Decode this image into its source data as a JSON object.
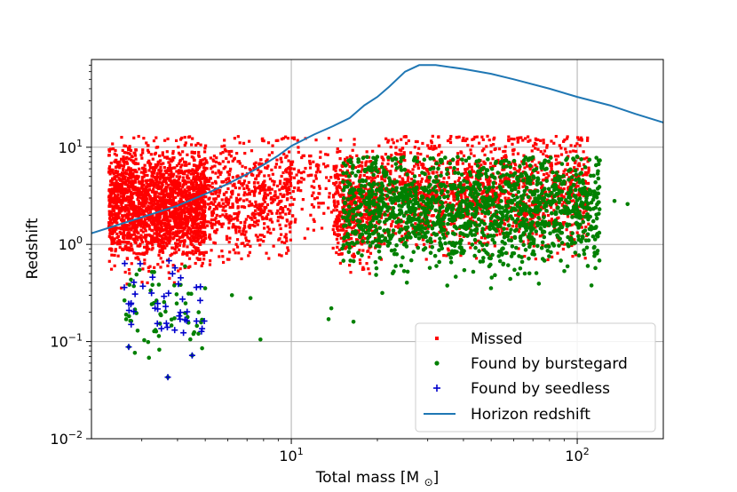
{
  "chart_data": {
    "type": "scatter",
    "xscale": "log",
    "yscale": "log",
    "xlim": [
      2,
      200
    ],
    "ylim": [
      0.01,
      80
    ],
    "grid": true,
    "xlabel": "Total mass [M⊙]",
    "ylabel": "Redshift",
    "xticks": [
      {
        "value": 10,
        "base": "10",
        "exp": "1"
      },
      {
        "value": 100,
        "base": "10",
        "exp": "2"
      }
    ],
    "yticks": [
      {
        "value": 0.01,
        "base": "10",
        "exp": "−2"
      },
      {
        "value": 0.1,
        "base": "10",
        "exp": "−1"
      },
      {
        "value": 1,
        "base": "10",
        "exp": "0"
      },
      {
        "value": 10,
        "base": "10",
        "exp": "1"
      }
    ],
    "legend": {
      "position": "lower-right",
      "entries": [
        {
          "label": "Missed",
          "marker": "square",
          "color": "#ff0000"
        },
        {
          "label": "Found by burstegard",
          "marker": "circle",
          "color": "#008000"
        },
        {
          "label": "Found by seedless",
          "marker": "plus",
          "color": "#0000cc"
        },
        {
          "label": "Horizon redshift",
          "marker": "line",
          "color": "#1f77b4"
        }
      ]
    },
    "series": [
      {
        "name": "Missed",
        "color": "#ff0000",
        "clusters": [
          {
            "x_range": [
              2.3,
              5.0
            ],
            "z_range": [
              0.15,
              13
            ],
            "z_center": 2.5,
            "count": 2200
          },
          {
            "x_range": [
              4.5,
              10
            ],
            "z_range": [
              0.3,
              13
            ],
            "z_center": 3.0,
            "count": 700
          },
          {
            "x_range": [
              9.5,
              14
            ],
            "z_range": [
              1,
              13
            ],
            "z_center": 5.0,
            "count": 120
          },
          {
            "x_range": [
              14,
              19
            ],
            "z_range": [
              0.5,
              13
            ],
            "z_center": 2.5,
            "count": 450
          },
          {
            "x_range": [
              19,
              110
            ],
            "z_range": [
              0.6,
              13
            ],
            "z_center": 3.5,
            "count": 1600
          }
        ]
      },
      {
        "name": "Found by burstegard",
        "color": "#008000",
        "clusters": [
          {
            "x_range": [
              15,
              120
            ],
            "z_range": [
              0.3,
              8
            ],
            "z_center": 2.3,
            "count": 1500
          },
          {
            "x_range": [
              2.6,
              5.0
            ],
            "z_range": [
              0.04,
              0.6
            ],
            "z_center": 0.2,
            "count": 60
          }
        ],
        "outliers": [
          {
            "x": 7.8,
            "y": 0.105
          },
          {
            "x": 6.2,
            "y": 0.3
          },
          {
            "x": 7.2,
            "y": 0.28
          },
          {
            "x": 13.5,
            "y": 0.17
          },
          {
            "x": 16.5,
            "y": 0.16
          },
          {
            "x": 3.7,
            "y": 0.043
          },
          {
            "x": 2.7,
            "y": 0.088
          },
          {
            "x": 4.5,
            "y": 0.072
          },
          {
            "x": 135,
            "y": 2.8
          },
          {
            "x": 150,
            "y": 2.6
          },
          {
            "x": 13.8,
            "y": 0.22
          }
        ]
      },
      {
        "name": "Found by seedless",
        "color": "#0000cc",
        "clusters": [
          {
            "x_range": [
              2.6,
              5.0
            ],
            "z_range": [
              0.12,
              0.7
            ],
            "z_center": 0.25,
            "count": 45
          }
        ],
        "outliers": [
          {
            "x": 3.7,
            "y": 0.043
          },
          {
            "x": 2.7,
            "y": 0.088
          },
          {
            "x": 4.5,
            "y": 0.072
          }
        ]
      },
      {
        "name": "Horizon redshift",
        "color": "#1f77b4",
        "type": "line",
        "x": [
          2,
          3,
          4,
          5,
          6,
          7,
          8,
          9,
          10,
          12,
          14,
          16,
          18,
          20,
          22,
          25,
          28,
          32,
          40,
          50,
          60,
          80,
          100,
          130,
          160,
          200
        ],
        "y": [
          1.3,
          1.9,
          2.5,
          3.3,
          4.2,
          5.3,
          6.6,
          8.2,
          10.3,
          13.5,
          16.5,
          20,
          27,
          33,
          42,
          60,
          70,
          70,
          64,
          57,
          50,
          40,
          33,
          27,
          22,
          18
        ]
      }
    ]
  }
}
